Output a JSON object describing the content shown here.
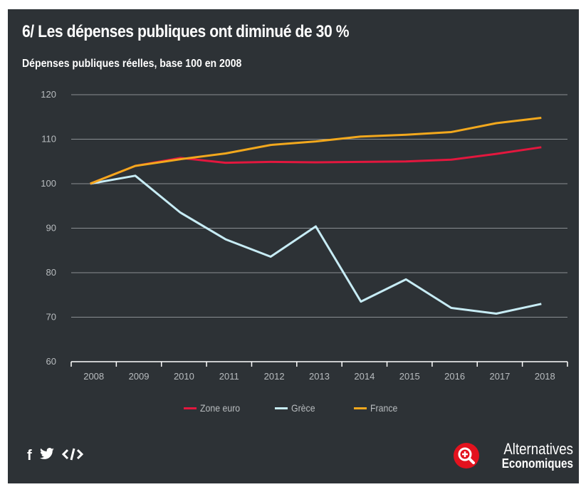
{
  "header": {
    "title": "6/ Les dépenses publiques ont diminué de 30 %",
    "subtitle": "Dépenses publiques réelles, base 100 en 2008"
  },
  "chart_data": {
    "type": "line",
    "title": "6/ Les dépenses publiques ont diminué de 30 %",
    "subtitle": "Dépenses publiques réelles, base 100 en 2008",
    "xlabel": "",
    "ylabel": "",
    "x": [
      "2008",
      "2009",
      "2010",
      "2011",
      "2012",
      "2013",
      "2014",
      "2015",
      "2016",
      "2017",
      "2018"
    ],
    "ylim": [
      60,
      120
    ],
    "yticks": [
      60,
      70,
      80,
      90,
      100,
      110,
      120
    ],
    "grid": true,
    "legend_position": "bottom",
    "series": [
      {
        "name": "Zone euro",
        "color": "#e3173e",
        "values": [
          100,
          104,
          105.8,
          104.7,
          104.9,
          104.8,
          104.9,
          105.0,
          105.4,
          106.7,
          108.2
        ]
      },
      {
        "name": "Grèce",
        "color": "#c7ecf5",
        "values": [
          100,
          101.8,
          93.5,
          87.5,
          83.6,
          90.4,
          73.5,
          78.5,
          72.1,
          70.8,
          73.0
        ]
      },
      {
        "name": "France",
        "color": "#f2a81d",
        "values": [
          100,
          104.0,
          105.5,
          106.8,
          108.7,
          109.5,
          110.6,
          111.0,
          111.6,
          113.6,
          114.8
        ]
      }
    ]
  },
  "brand": {
    "line1": "Alternatives",
    "line2": "Economiques"
  }
}
